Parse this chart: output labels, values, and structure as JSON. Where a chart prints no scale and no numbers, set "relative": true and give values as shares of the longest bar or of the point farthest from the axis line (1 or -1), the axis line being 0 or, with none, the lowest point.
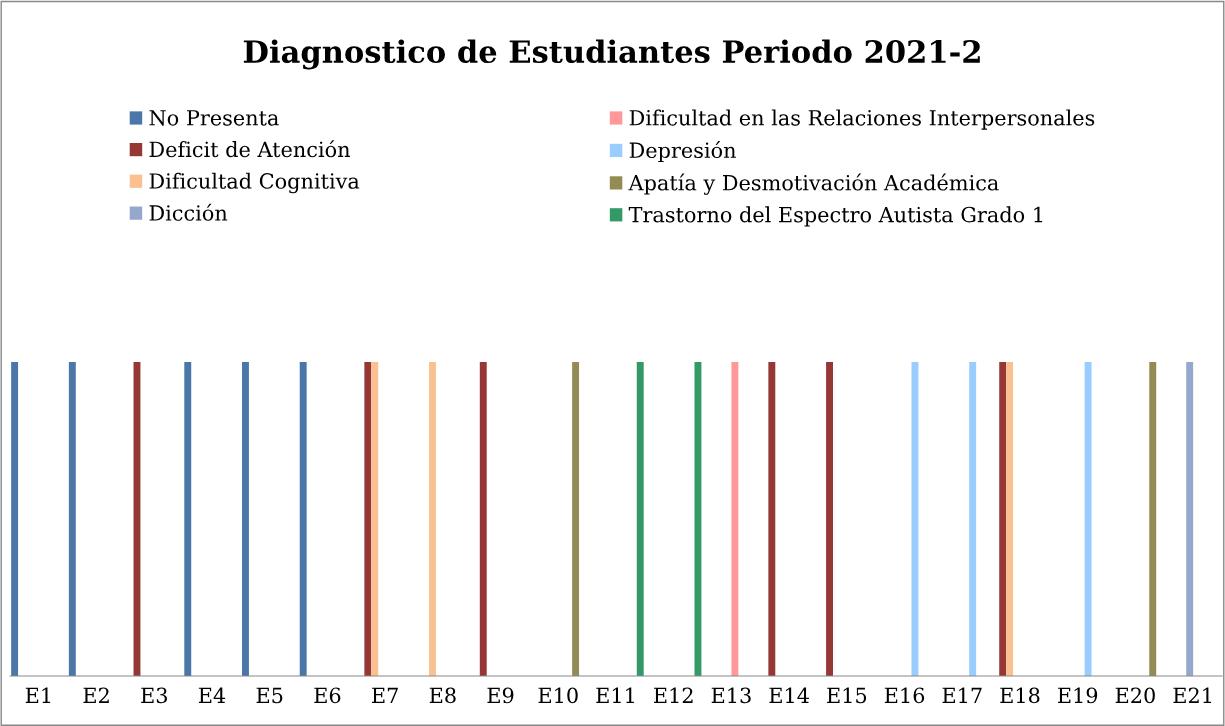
{
  "chart_data": {
    "type": "bar",
    "title": "Diagnostico de Estudiantes Periodo 2021-2",
    "relative": true,
    "legend": "top",
    "grid": false,
    "categories": [
      "E1",
      "E2",
      "E3",
      "E4",
      "E5",
      "E6",
      "E7",
      "E8",
      "E9",
      "E10",
      "E11",
      "E12",
      "E13",
      "E14",
      "E15",
      "E16",
      "E17",
      "E18",
      "E19",
      "E20",
      "E21"
    ],
    "series": [
      {
        "name": "No Presenta",
        "color": "#4a76a8",
        "values": [
          1,
          1,
          null,
          1,
          1,
          1,
          null,
          null,
          null,
          null,
          null,
          null,
          null,
          null,
          null,
          null,
          null,
          null,
          null,
          null,
          null
        ]
      },
      {
        "name": "Deficit de Atención",
        "color": "#953735",
        "values": [
          null,
          null,
          1,
          null,
          null,
          null,
          1,
          null,
          1,
          null,
          null,
          null,
          null,
          1,
          1,
          null,
          null,
          1,
          null,
          null,
          null
        ]
      },
      {
        "name": "Dificultad Cognitiva",
        "color": "#fac090",
        "values": [
          null,
          null,
          null,
          null,
          null,
          null,
          1,
          1,
          null,
          null,
          null,
          null,
          null,
          null,
          null,
          null,
          null,
          1,
          null,
          null,
          null
        ]
      },
      {
        "name": "Dicción",
        "color": "#95a7cc",
        "values": [
          null,
          null,
          null,
          null,
          null,
          null,
          null,
          null,
          null,
          null,
          null,
          null,
          null,
          null,
          null,
          null,
          null,
          null,
          null,
          null,
          1
        ]
      },
      {
        "name": "Dificultad en las Relaciones Interpersonales",
        "color": "#ff9999",
        "values": [
          null,
          null,
          null,
          null,
          null,
          null,
          null,
          null,
          null,
          null,
          null,
          null,
          1,
          null,
          null,
          null,
          null,
          null,
          null,
          null,
          null
        ]
      },
      {
        "name": "Depresión",
        "color": "#99ccff",
        "values": [
          null,
          null,
          null,
          null,
          null,
          null,
          null,
          null,
          null,
          null,
          null,
          null,
          null,
          null,
          null,
          1,
          1,
          null,
          1,
          null,
          null
        ]
      },
      {
        "name": "Apatía y Desmotivación Académica",
        "color": "#948a54",
        "values": [
          null,
          null,
          null,
          null,
          null,
          null,
          null,
          null,
          null,
          1,
          null,
          null,
          null,
          null,
          null,
          null,
          null,
          null,
          null,
          1,
          null
        ]
      },
      {
        "name": "Trastorno del Espectro Autista Grado 1",
        "color": "#339966",
        "values": [
          null,
          null,
          null,
          null,
          null,
          null,
          null,
          null,
          null,
          null,
          1,
          1,
          null,
          null,
          null,
          null,
          null,
          null,
          null,
          null,
          null
        ]
      }
    ]
  }
}
